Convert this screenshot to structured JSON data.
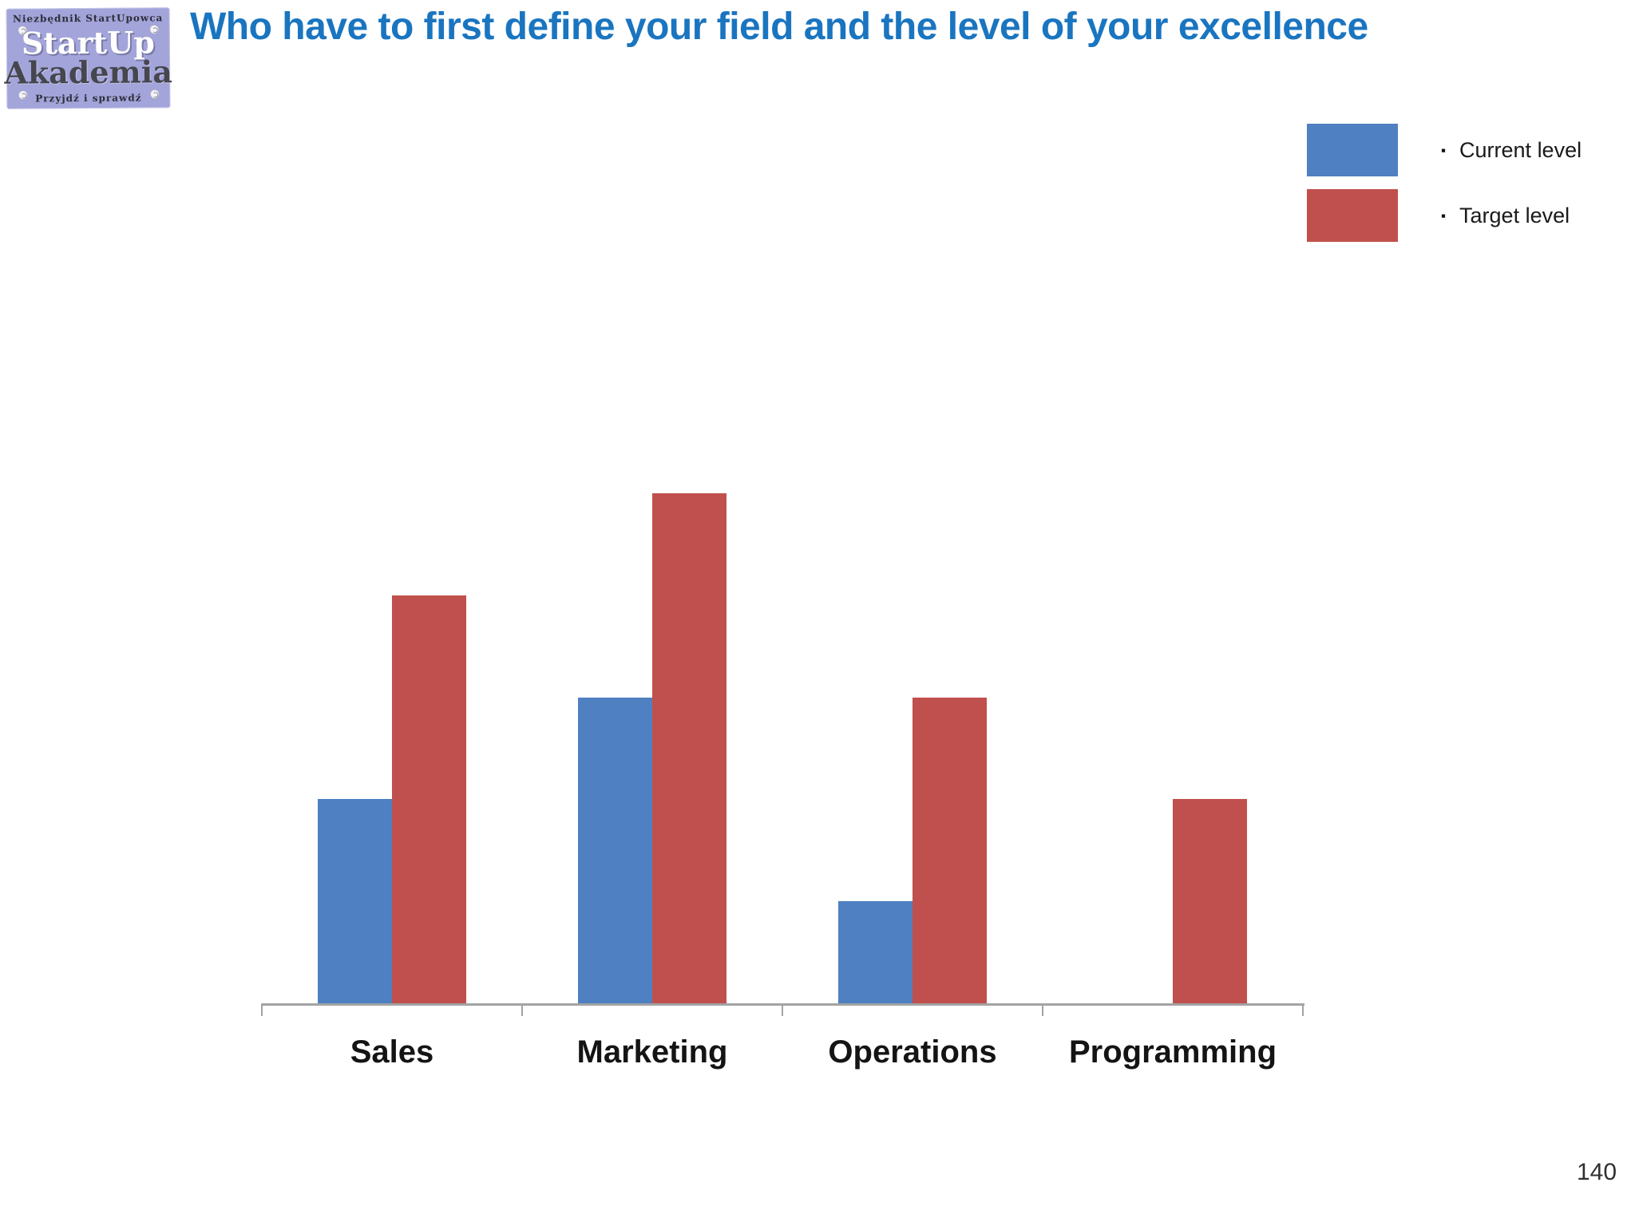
{
  "slide": {
    "title": "Who have to first define your field and the level of your excellence",
    "page_number": "140"
  },
  "logo": {
    "top_text": "Niezbędnik StartUpowca",
    "line1": "StartUp",
    "line2": "Akademia",
    "bottom_text": "Przyjdź i sprawdź"
  },
  "legend": {
    "items": [
      {
        "bullet": "▪",
        "label": "Current level",
        "color": "#4e80c2"
      },
      {
        "bullet": "▪",
        "label": "Target level",
        "color": "#c0504d"
      }
    ]
  },
  "chart_data": {
    "type": "bar",
    "title": "",
    "xlabel": "",
    "ylabel": "",
    "categories": [
      "Sales",
      "Marketing",
      "Operations",
      "Programming"
    ],
    "series": [
      {
        "name": "Current level",
        "color": "#4e80c2",
        "values": [
          2,
          3,
          1,
          0
        ]
      },
      {
        "name": "Target level",
        "color": "#c0504d",
        "values": [
          4,
          5,
          3,
          2
        ]
      }
    ],
    "ylim": [
      0,
      5
    ],
    "grid": false,
    "legend_position": "top-right",
    "axis_color": "#a3a3a3"
  },
  "colors": {
    "title": "#1a75c0",
    "logo_bg": "#a2a4da"
  }
}
